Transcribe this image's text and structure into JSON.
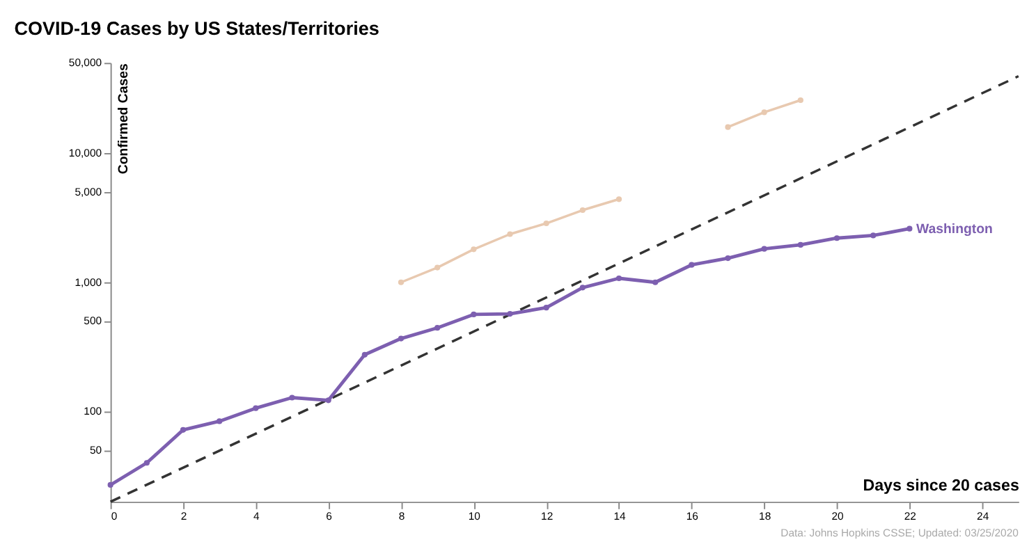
{
  "chart_data": {
    "type": "line",
    "title": "COVID-19 Cases by US States/Territories",
    "xlabel": "Days since 20 cases",
    "ylabel": "Confirmed Cases",
    "log": "y",
    "xlim": [
      0,
      25
    ],
    "xticks": [
      0,
      2,
      4,
      6,
      8,
      10,
      12,
      14,
      16,
      18,
      20,
      22,
      24
    ],
    "ylim": [
      20,
      50000
    ],
    "yticks": [
      {
        "value": 50,
        "label": "50"
      },
      {
        "value": 100,
        "label": "100"
      },
      {
        "value": 500,
        "label": "500"
      },
      {
        "value": 1000,
        "label": "1,000"
      },
      {
        "value": 5000,
        "label": "5,000"
      },
      {
        "value": 10000,
        "label": "10,000"
      },
      {
        "value": 50000,
        "label": "50,000"
      }
    ],
    "annotations": [
      "Data: Johns Hopkins CSSE; Updated: 03/25/2020"
    ],
    "series": [
      {
        "color": "#333333",
        "line_style": "dashed",
        "marker": "none",
        "x": [
          0,
          25
        ],
        "values": [
          20,
          39400
        ]
      },
      {
        "color": "#e8c9b0",
        "line_style": "solid",
        "marker": "circle",
        "x": [
          8,
          9,
          10,
          11,
          12,
          13,
          14,
          15,
          16,
          17,
          18,
          19
        ],
        "values": [
          1000,
          1300,
          1800,
          2360,
          2860,
          3620,
          4400,
          null,
          null,
          15900,
          20700,
          25700
        ]
      },
      {
        "name": "Washington",
        "color": "#7d5fb0",
        "line_style": "solid",
        "marker": "circle",
        "x": [
          0,
          1,
          2,
          3,
          4,
          5,
          6,
          7,
          8,
          9,
          10,
          11,
          12,
          13,
          14,
          15,
          16,
          17,
          18,
          19,
          20,
          21,
          22
        ],
        "values": [
          27,
          40,
          72,
          84,
          106,
          128,
          122,
          275,
          367,
          444,
          564,
          570,
          636,
          910,
          1074,
          1000,
          1364,
          1537,
          1816,
          1950,
          2198,
          2305,
          2600
        ]
      }
    ]
  }
}
